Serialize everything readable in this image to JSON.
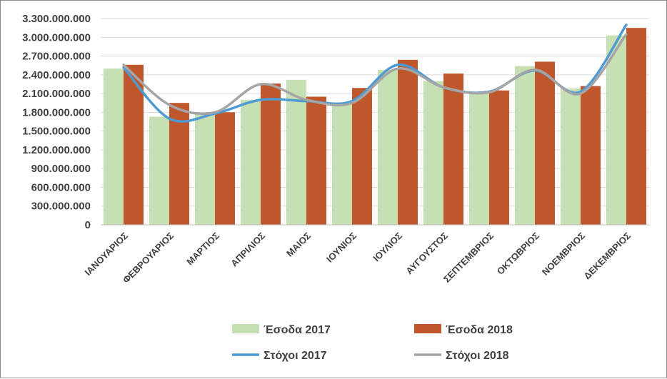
{
  "chart_data": {
    "type": "bar",
    "categories": [
      "ΙΑΝΟΥΑΡΙΟΣ",
      "ΦΕΒΡΟΥΑΡΙΟΣ",
      "ΜΑΡΤΙΟΣ",
      "ΑΠΡΙΛΙΟΣ",
      "ΜΑΙΟΣ",
      "ΙΟΥΝΙΟΣ",
      "ΙΟΥΛΙΟΣ",
      "ΑΥΓΟΥΣΤΟΣ",
      "ΣΕΠΤΕΜΒΡΙΟΣ",
      "ΟΚΤΩΒΡΙΟΣ",
      "ΝΟΕΜΒΡΙΟΣ",
      "ΔΕΚΕΜΒΡΙΟΣ"
    ],
    "series": [
      {
        "name": "Έσοδα 2017",
        "kind": "bar",
        "color": "#c6e0b4",
        "values": [
          2500000000,
          1730000000,
          1790000000,
          2000000000,
          2320000000,
          1950000000,
          2480000000,
          2300000000,
          2100000000,
          2540000000,
          2180000000,
          3030000000
        ]
      },
      {
        "name": "Έσοδα 2018",
        "kind": "bar",
        "color": "#c0562b",
        "values": [
          2560000000,
          1950000000,
          1800000000,
          2260000000,
          2050000000,
          2190000000,
          2640000000,
          2420000000,
          2150000000,
          2610000000,
          2220000000,
          3150000000
        ]
      },
      {
        "name": "Στόχοι 2017",
        "kind": "line",
        "color": "#4e9ad3",
        "values": [
          2520000000,
          1700000000,
          1780000000,
          2000000000,
          1980000000,
          1980000000,
          2560000000,
          2200000000,
          2130000000,
          2470000000,
          2130000000,
          3200000000
        ]
      },
      {
        "name": "Στόχοι 2018",
        "kind": "line",
        "color": "#a5a5a5",
        "values": [
          2560000000,
          1920000000,
          1800000000,
          2250000000,
          2000000000,
          1950000000,
          2500000000,
          2200000000,
          2120000000,
          2480000000,
          2100000000,
          3050000000
        ]
      }
    ],
    "y_ticks": [
      "0",
      "300.000.000",
      "600.000.000",
      "900.000.000",
      "1.200.000.000",
      "1.500.000.000",
      "1.800.000.000",
      "2.100.000.000",
      "2.400.000.000",
      "2.700.000.000",
      "3.000.000.000",
      "3.300.000.000"
    ],
    "ylim": [
      0,
      3300000000
    ],
    "title": "",
    "xlabel": "",
    "ylabel": "",
    "grid": true,
    "legend_position": "bottom"
  }
}
